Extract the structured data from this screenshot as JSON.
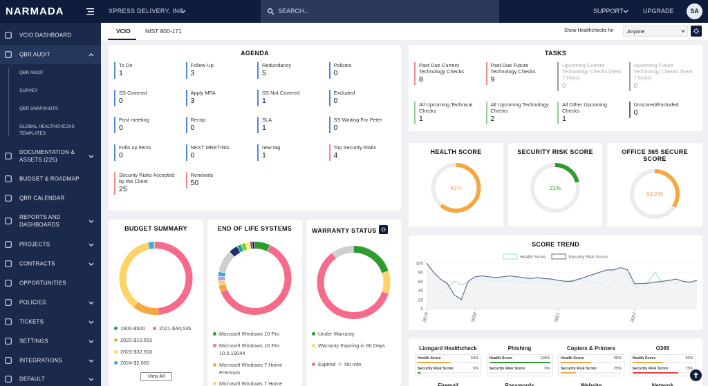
{
  "topbar": {
    "logo": "NARMADA",
    "company": "XPRESS DELIVERY, INC",
    "search_placeholder": "SEARCH...",
    "support": "SUPPORT",
    "upgrade": "UPGRADE",
    "avatar": "SA"
  },
  "sidebar": {
    "items": [
      {
        "label": "VCIO DASHBOARD"
      },
      {
        "label": "QBR AUDIT",
        "expandable": true,
        "active": true,
        "children": [
          "QBR AUDIT",
          "SURVEY",
          "QBR SNAPSHOTS",
          "GLOBAL HEALTHCHECKS TEMPLATES"
        ]
      },
      {
        "label": "DOCUMENTATION & ASSETS (225)",
        "expandable": true
      },
      {
        "label": "BUDGET & ROADMAP"
      },
      {
        "label": "QBR CALENDAR"
      },
      {
        "label": "REPORTS AND DASHBOARDS",
        "expandable": true
      },
      {
        "label": "PROJECTS",
        "expandable": true
      },
      {
        "label": "CONTRACTS",
        "expandable": true
      },
      {
        "label": "OPPORTUNITIES"
      },
      {
        "label": "POLICIES",
        "expandable": true
      },
      {
        "label": "TICKETS",
        "expandable": true
      },
      {
        "label": "SETTINGS",
        "expandable": true
      },
      {
        "label": "INTEGRATIONS",
        "expandable": true
      },
      {
        "label": "DEFAULT",
        "expandable": true
      }
    ]
  },
  "tabs": {
    "items": [
      "VCIO",
      "NIST 800-171"
    ],
    "active": 0,
    "filter_label": "Show Healthchecks for",
    "filter_value": "Anyone"
  },
  "agenda": {
    "title": "AGENDA",
    "items": [
      {
        "label": "To Do",
        "value": 1,
        "color": "#4f86d8"
      },
      {
        "label": "Follow Up",
        "value": 3,
        "color": "#4f86d8"
      },
      {
        "label": "Redundancy",
        "value": 5,
        "color": "#4f86d8"
      },
      {
        "label": "Policies",
        "value": 0,
        "color": "#4f86d8"
      },
      {
        "label": "SS Covered",
        "value": 0,
        "color": "#4f86d8"
      },
      {
        "label": "Apply MFA",
        "value": 3,
        "color": "#4f86d8"
      },
      {
        "label": "SS Not Covered",
        "value": 1,
        "color": "#4f86d8"
      },
      {
        "label": "Excluded",
        "value": 0,
        "color": "#4f86d8"
      },
      {
        "label": "Post meeting",
        "value": 0,
        "color": "#4f86d8"
      },
      {
        "label": "Recap",
        "value": 0,
        "color": "#4f86d8"
      },
      {
        "label": "SLA",
        "value": 1,
        "color": "#4f86d8"
      },
      {
        "label": "SS Waiting For Peter",
        "value": 0,
        "color": "#4f86d8"
      },
      {
        "label": "Follo up items",
        "value": 0,
        "color": "#4f86d8"
      },
      {
        "label": "NEXT MEETING",
        "value": 0,
        "color": "#4f86d8"
      },
      {
        "label": "new tag",
        "value": 1,
        "color": "#4f86d8"
      },
      {
        "label": "Top Security Risks",
        "value": 4,
        "color": "#f08a8a"
      },
      {
        "label": "Security Risks Accepted by the Client",
        "value": 25,
        "color": "#f08a8a"
      },
      {
        "label": "Renewals",
        "value": 50,
        "color": "#f08a8a"
      }
    ]
  },
  "tasks": {
    "title": "TASKS",
    "items": [
      {
        "label": "Past Due Current Technology Checks",
        "value": 8,
        "color": "#f08a8a"
      },
      {
        "label": "Past Due Future Technology Checks",
        "value": 9,
        "color": "#f08a8a"
      },
      {
        "label": "Upcoming Current Technology Checks (Next 7 Days)",
        "value": 0,
        "color": "#9a9a9a",
        "muted": true
      },
      {
        "label": "Upcoming Future Technology Checks (Next 7 Days)",
        "value": 0,
        "color": "#9a9a9a",
        "muted": true
      },
      {
        "label": "All Upcoming Technical Checks",
        "value": 1,
        "color": "#8fd18f"
      },
      {
        "label": "All Upcoming Technology Checks",
        "value": 2,
        "color": "#8fd18f"
      },
      {
        "label": "All Other Upcoming Checks",
        "value": 1,
        "color": "#8fd18f"
      },
      {
        "label": "Unscored/Excluded",
        "value": 0,
        "color": "#666666"
      }
    ]
  },
  "scores": [
    {
      "title": "HEALTH SCORE",
      "value": 61,
      "value_label": "61%",
      "color": "#f5a742"
    },
    {
      "title": "SECURITY RISK SCORE",
      "value": 21,
      "value_label": "21%",
      "color": "#2e9b2e"
    },
    {
      "title": "OFFICE 365 SECURE SCORE",
      "value": 84,
      "max": 246,
      "value_label": "84/246",
      "color": "#f5a742"
    }
  ],
  "score_trend": {
    "title": "SCORE TREND",
    "type": "line",
    "xlim": [
      0,
      39
    ],
    "ylim": [
      0,
      100
    ],
    "yticks": [
      0,
      20,
      40,
      60,
      80,
      100
    ],
    "xticks": [
      {
        "value": 0,
        "label": "2019"
      },
      {
        "value": 7,
        "label": "2020"
      },
      {
        "value": 19,
        "label": "2021"
      },
      {
        "value": 30,
        "label": "2022"
      }
    ],
    "series": [
      {
        "name": "Health Score",
        "color": "#a8e0c0",
        "values": [
          15,
          25,
          35,
          45,
          60,
          52,
          58,
          65,
          65,
          62,
          60,
          62,
          60,
          60,
          57,
          58,
          60,
          62,
          55,
          50,
          58,
          62,
          65,
          60,
          58,
          55,
          45,
          60,
          70,
          75,
          50,
          40,
          60,
          80,
          55,
          62,
          55,
          60,
          58,
          62
        ]
      },
      {
        "name": "Security Risk Score",
        "color": "#5b6f8f",
        "values": [
          100,
          80,
          65,
          55,
          30,
          20,
          60,
          70,
          72,
          70,
          68,
          70,
          72,
          70,
          68,
          66,
          68,
          66,
          65,
          62,
          60,
          60,
          65,
          70,
          75,
          80,
          85,
          85,
          90,
          85,
          55,
          55,
          56,
          58,
          60,
          62,
          65,
          60,
          58,
          62
        ]
      }
    ]
  },
  "budget_summary": {
    "title": "BUDGET SUMMARY",
    "button": "View All",
    "segments": [
      {
        "label": "1900-$500",
        "value": 500,
        "color": "#2e9b2e"
      },
      {
        "label": "2021-$44,535",
        "value": 44535,
        "color": "#f76b8a"
      },
      {
        "label": "2022-$10,552",
        "value": 10552,
        "color": "#f5a742"
      },
      {
        "label": "2023-$32,500",
        "value": 32500,
        "color": "#fdd267"
      },
      {
        "label": "2024-$2,000",
        "value": 2000,
        "color": "#3ea8d8"
      }
    ]
  },
  "end_of_life": {
    "title": "END OF LIFE SYSTEMS",
    "segments": [
      {
        "label": "Microsoft Windows 10 Pro",
        "value": 7,
        "color": "#2e9b2e"
      },
      {
        "label": "Microsoft Windows 10 Pro 10.0.19044",
        "value": 62,
        "color": "#f76b8a"
      },
      {
        "label": "Microsoft Windows 7 Home Premium",
        "value": 3,
        "color": "#f5a742"
      },
      {
        "label": "Microsoft Windows 7 Home",
        "value": 2,
        "color": "#fdd267"
      },
      {
        "value": 2,
        "color": "#b79cf0"
      },
      {
        "value": 2,
        "color": "#3ea8d8"
      },
      {
        "value": 10,
        "color": "#cfcfcf"
      },
      {
        "value": 4,
        "color": "#1f2d6b"
      },
      {
        "value": 2,
        "color": "#1fa7a0"
      },
      {
        "value": 2,
        "color": "#7ed321"
      },
      {
        "value": 2,
        "color": "#fff35c"
      },
      {
        "value": 1,
        "color": "#7b3fb5"
      },
      {
        "value": 1,
        "color": "#222222"
      }
    ]
  },
  "warranty": {
    "title": "WARRANTY STATUS",
    "segments": [
      {
        "label": "Under Warranty",
        "value": 20,
        "color": "#2e9b2e"
      },
      {
        "label": "Warranty Expiring in 90 Days",
        "value": 10,
        "color": "#fdd267"
      },
      {
        "label": "Expired",
        "value": 60,
        "color": "#f76b8a"
      },
      {
        "label": "No Info",
        "value": 10,
        "color": "#cfcfcf"
      }
    ]
  },
  "healthchecks": {
    "cards": [
      {
        "title": "Liongard Healthcheck",
        "metrics": [
          {
            "label": "Health Score",
            "value": 54,
            "value_label": "54%",
            "color": "#f5a742"
          },
          {
            "label": "Security Risk Score",
            "value": 5,
            "value_label": "5%",
            "color": "#2e9b2e"
          }
        ]
      },
      {
        "title": "Phishing",
        "metrics": [
          {
            "label": "Health Score",
            "value": 100,
            "value_label": "100%",
            "color": "#2e9b2e"
          },
          {
            "label": "Security Risk Score",
            "value": 0,
            "value_label": "0%",
            "color": "#2e9b2e"
          }
        ]
      },
      {
        "title": "Copiers & Printers",
        "metrics": [
          {
            "label": "Health Score",
            "value": 50,
            "value_label": "50%",
            "color": "#f5a742"
          },
          {
            "label": "Security Risk Score",
            "value": 25,
            "value_label": "25%",
            "color": "#f5a742"
          }
        ]
      },
      {
        "title": "O365",
        "metrics": [
          {
            "label": "Health Score",
            "value": 50,
            "value_label": "50%",
            "color": "#f5a742"
          },
          {
            "label": "Security Risk Score",
            "value": 75,
            "value_label": "75%",
            "color": "#e04040"
          }
        ]
      }
    ],
    "next_row": [
      "Firewall",
      "Passwords",
      "Website",
      "Network"
    ]
  }
}
